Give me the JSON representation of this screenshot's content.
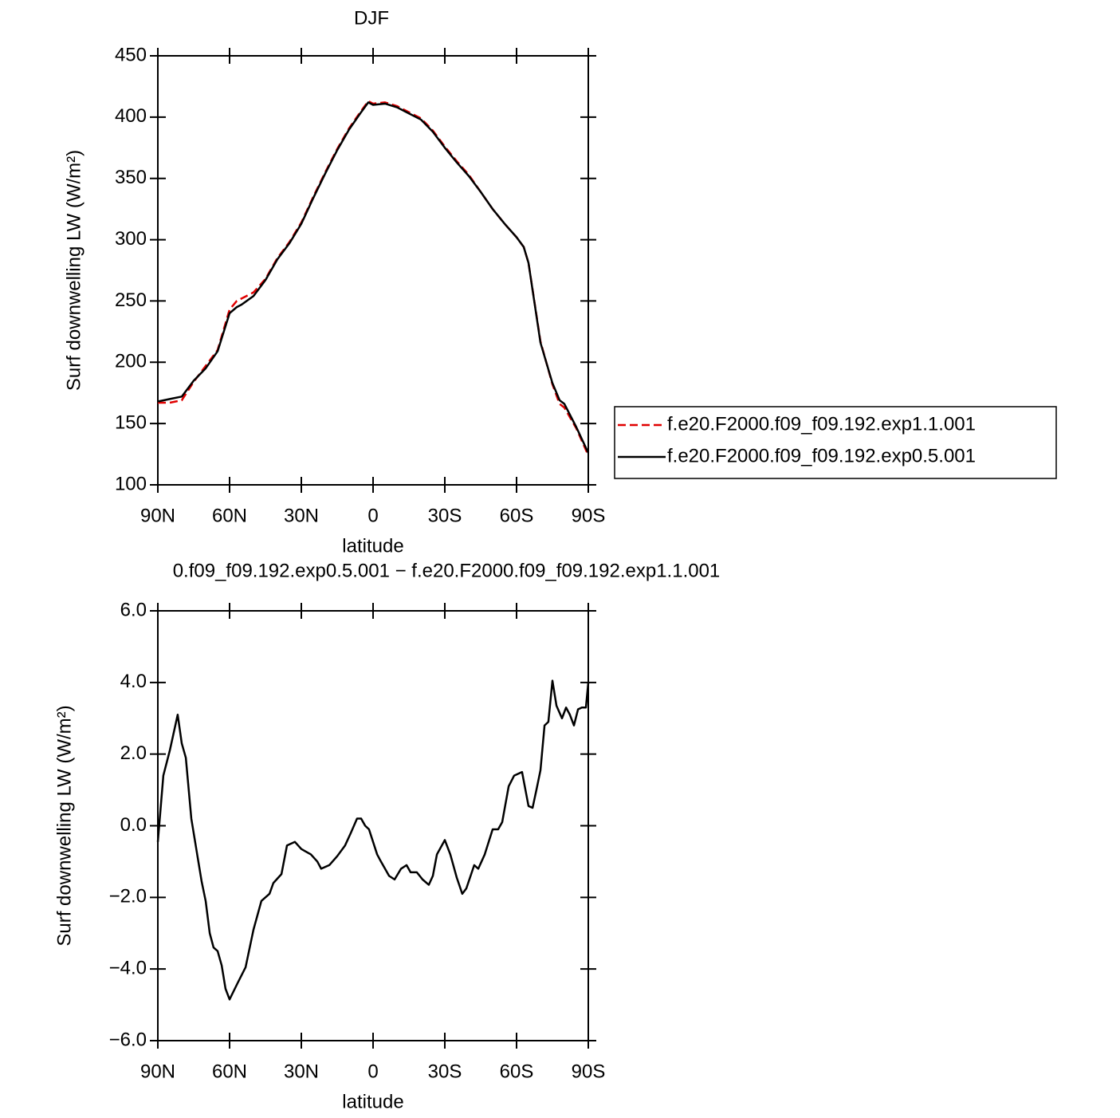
{
  "chart_data": [
    {
      "type": "line",
      "title": "DJF",
      "x_label": "latitude",
      "y_label": "Surf downwelling LW (W/m²)",
      "x": [
        90,
        85,
        80,
        75,
        70,
        65,
        60,
        57,
        55,
        50,
        45,
        40,
        35,
        30,
        25,
        20,
        15,
        10,
        5,
        2,
        0,
        -5,
        -10,
        -15,
        -20,
        -25,
        -30,
        -35,
        -40,
        -45,
        -50,
        -55,
        -60,
        -63,
        -65,
        -70,
        -75,
        -78,
        -80,
        -85,
        -90
      ],
      "series": [
        {
          "name": "f.e20.F2000.f09_f09.192.exp1.1.001",
          "color": "#e00000",
          "style": "dashed",
          "values": [
            167,
            167,
            169,
            184,
            197,
            210,
            243,
            250,
            252,
            257,
            268,
            285,
            298,
            314,
            335,
            355,
            374,
            391,
            405,
            413,
            411,
            412,
            409,
            404,
            399,
            389,
            376,
            364,
            353,
            339,
            325,
            313,
            302,
            294,
            281,
            217,
            182,
            166,
            163,
            146,
            124
          ]
        },
        {
          "name": "f.e20.F2000.f09_f09.192.exp0.5.001",
          "color": "#000000",
          "style": "solid",
          "values": [
            168,
            170,
            172,
            185,
            195,
            209,
            240,
            245,
            247,
            254,
            267,
            284,
            297,
            313,
            334,
            354,
            373,
            390,
            404,
            412,
            410,
            411,
            408,
            403,
            398,
            388,
            375,
            363,
            352,
            339,
            325,
            313,
            302,
            294,
            281,
            216,
            183,
            169,
            166,
            147,
            126
          ]
        }
      ],
      "xlim": [
        90,
        -90
      ],
      "xticks": [
        {
          "value": 90,
          "label": "90N"
        },
        {
          "value": 60,
          "label": "60N"
        },
        {
          "value": 30,
          "label": "30N"
        },
        0,
        {
          "value": -30,
          "label": "30S"
        },
        {
          "value": -60,
          "label": "60S"
        },
        {
          "value": -90,
          "label": "90S"
        }
      ],
      "ylim": [
        100,
        450
      ],
      "yticks": [
        100,
        150,
        200,
        250,
        300,
        350,
        400,
        450
      ],
      "legend": "right"
    },
    {
      "type": "line",
      "title": "0.f09_f09.192.exp0.5.001 − f.e20.F2000.f09_f09.192.exp1.1.001",
      "x_label": "latitude",
      "y_label": "Surf downwelling LW (W/m²)",
      "x": [
        90,
        87.7,
        85,
        81.7,
        80,
        78.3,
        76,
        73.3,
        71.7,
        70,
        68.3,
        66.7,
        65,
        63.3,
        61.7,
        60,
        56.7,
        53.3,
        50,
        46.7,
        43.3,
        41.7,
        38.3,
        36,
        32.7,
        30,
        26,
        23.3,
        21.7,
        18.3,
        15,
        11.7,
        9.3,
        6.7,
        5,
        3.3,
        1.7,
        -1.7,
        -3.3,
        -6.7,
        -9,
        -11.7,
        -14,
        -15.7,
        -18.3,
        -20.7,
        -23.3,
        -25,
        -26.7,
        -30,
        -32.3,
        -35,
        -37.3,
        -39,
        -42.3,
        -44,
        -46.7,
        -50,
        -52.3,
        -54,
        -56.7,
        -59,
        -62.3,
        -65,
        -66.7,
        -68.3,
        -70,
        -71.7,
        -73.3,
        -75,
        -76.7,
        -79,
        -80.7,
        -82.3,
        -84,
        -85.7,
        -87.3,
        -89,
        -90
      ],
      "series": [
        {
          "color": "#000000",
          "style": "solid",
          "values": [
            -0.45,
            1.4,
            2.1,
            3.1,
            2.3,
            1.9,
            0.2,
            -0.9,
            -1.55,
            -2.1,
            -3.0,
            -3.4,
            -3.5,
            -3.9,
            -4.55,
            -4.85,
            -4.4,
            -3.95,
            -2.9,
            -2.1,
            -1.9,
            -1.6,
            -1.35,
            -0.55,
            -0.45,
            -0.65,
            -0.8,
            -1.0,
            -1.2,
            -1.1,
            -0.85,
            -0.55,
            -0.2,
            0.2,
            0.2,
            0.0,
            -0.1,
            -0.8,
            -1.0,
            -1.4,
            -1.5,
            -1.2,
            -1.1,
            -1.3,
            -1.3,
            -1.5,
            -1.65,
            -1.4,
            -0.8,
            -0.4,
            -0.8,
            -1.45,
            -1.9,
            -1.75,
            -1.1,
            -1.2,
            -0.8,
            -0.1,
            -0.1,
            0.1,
            1.1,
            1.4,
            1.5,
            0.55,
            0.5,
            1.0,
            1.55,
            2.8,
            2.9,
            4.05,
            3.35,
            3.0,
            3.3,
            3.1,
            2.8,
            3.25,
            3.3,
            3.3,
            4.0
          ]
        }
      ],
      "xlim": [
        90,
        -90
      ],
      "xticks": [
        {
          "value": 90,
          "label": "90N"
        },
        {
          "value": 60,
          "label": "60N"
        },
        {
          "value": 30,
          "label": "30N"
        },
        0,
        {
          "value": -30,
          "label": "30S"
        },
        {
          "value": -60,
          "label": "60S"
        },
        {
          "value": -90,
          "label": "90S"
        }
      ],
      "ylim": [
        -6,
        6
      ],
      "yticks": [
        {
          "value": -6,
          "label": "−6.0"
        },
        {
          "value": -4,
          "label": "−4.0"
        },
        {
          "value": -2,
          "label": "−2.0"
        },
        {
          "value": 0,
          "label": "0.0"
        },
        {
          "value": 2,
          "label": "2.0"
        },
        {
          "value": 4,
          "label": "4.0"
        },
        {
          "value": 6,
          "label": "6.0"
        }
      ]
    }
  ]
}
